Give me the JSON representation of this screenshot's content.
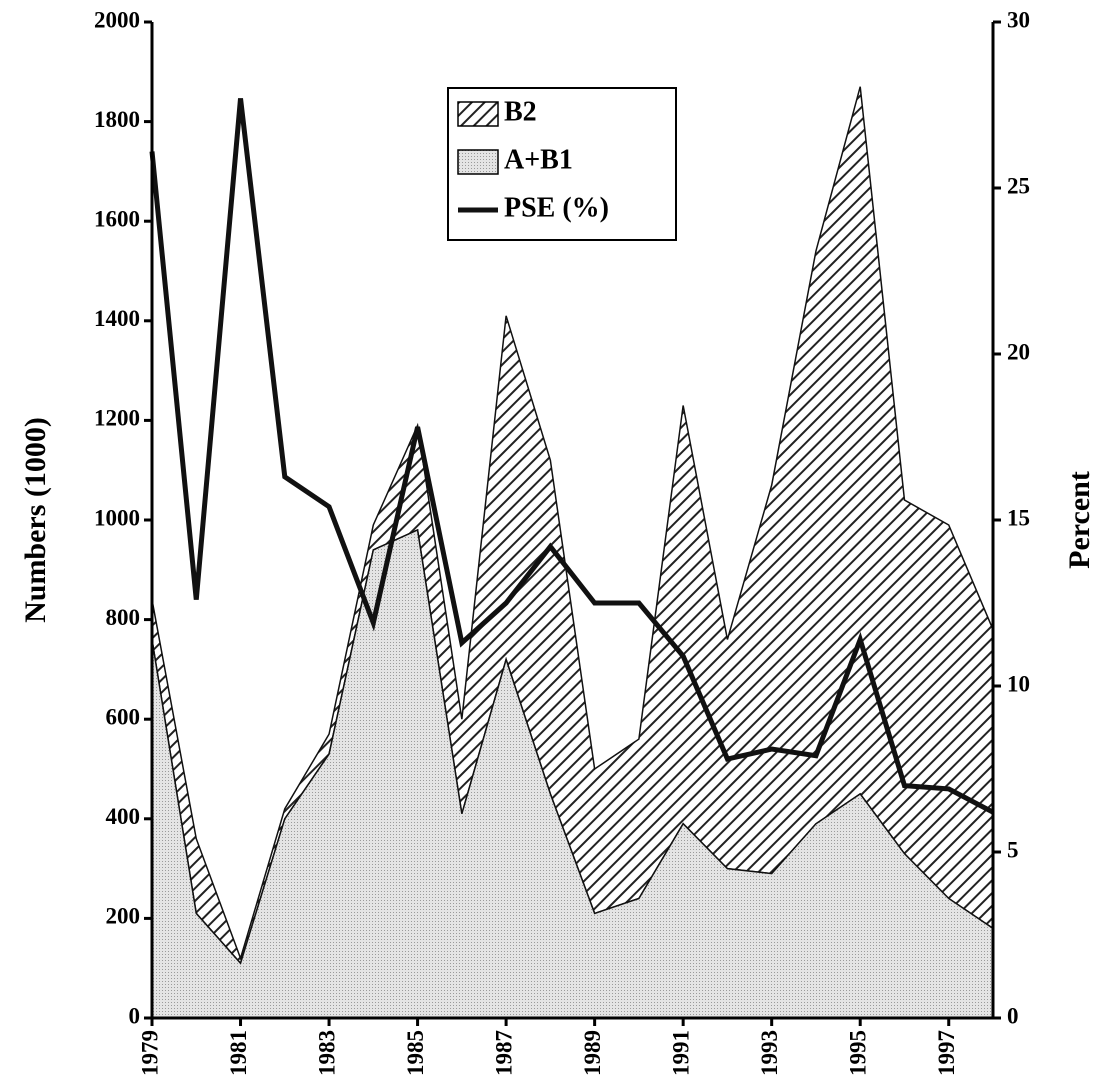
{
  "chart_data": {
    "type": "area",
    "x": [
      1979,
      1980,
      1981,
      1982,
      1983,
      1984,
      1985,
      1986,
      1987,
      1988,
      1989,
      1990,
      1991,
      1992,
      1993,
      1994,
      1995,
      1996,
      1997,
      1998
    ],
    "series": [
      {
        "name": "B2",
        "color": "#222222",
        "values": [
          80,
          150,
          10,
          20,
          40,
          50,
          210,
          190,
          690,
          670,
          290,
          320,
          840,
          460,
          780,
          1150,
          1420,
          710,
          750,
          600
        ]
      },
      {
        "name": "A+B1",
        "color": "#d4d4d4",
        "values": [
          760,
          210,
          110,
          400,
          530,
          940,
          980,
          410,
          720,
          450,
          210,
          240,
          390,
          300,
          290,
          390,
          450,
          330,
          240,
          180
        ]
      },
      {
        "name": "PSE (%)",
        "color": "#111111",
        "type": "line",
        "axis": "y2",
        "values": [
          26.1,
          12.6,
          27.7,
          16.3,
          15.4,
          11.9,
          17.8,
          11.3,
          12.5,
          14.2,
          12.5,
          12.5,
          10.9,
          7.8,
          8.1,
          7.9,
          11.4,
          7.0,
          6.9,
          6.2
        ]
      }
    ],
    "stacked": true,
    "xlim": [
      1979,
      1998
    ],
    "xticks": [
      1979,
      1981,
      1983,
      1985,
      1987,
      1989,
      1991,
      1993,
      1995,
      1997
    ],
    "ylim": [
      0,
      2000
    ],
    "yticks": [
      0,
      200,
      400,
      600,
      800,
      1000,
      1200,
      1400,
      1600,
      1800,
      2000
    ],
    "y2lim": [
      0,
      30
    ],
    "y2ticks": [
      0,
      5,
      10,
      15,
      20,
      25,
      30
    ],
    "ylabel": "Numbers (1000)",
    "y2label": "Percent"
  }
}
